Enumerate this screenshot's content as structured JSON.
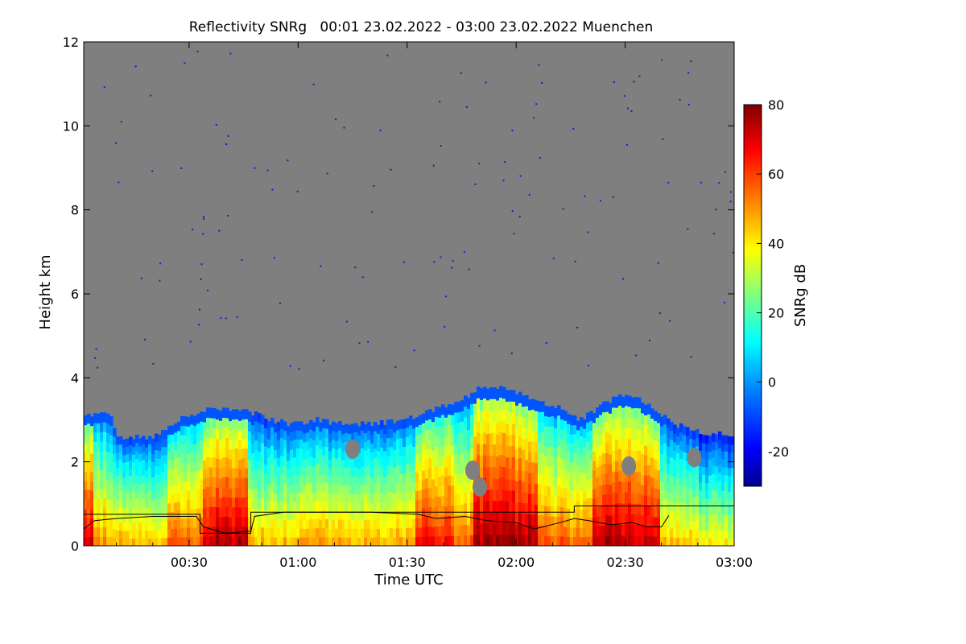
{
  "chart_data": {
    "type": "heatmap",
    "title": "Reflectivity SNRg   00:01 23.02.2022 - 03:00 23.02.2022 Muenchen",
    "xlabel": "Time UTC",
    "ylabel": "Height km",
    "colorbar_label": "SNRg dB",
    "x_range_minutes": [
      1,
      180
    ],
    "ylim": [
      0,
      12
    ],
    "x_ticks": [
      {
        "minute": 30,
        "label": "00:30"
      },
      {
        "minute": 60,
        "label": "01:00"
      },
      {
        "minute": 90,
        "label": "01:30"
      },
      {
        "minute": 120,
        "label": "02:00"
      },
      {
        "minute": 150,
        "label": "02:30"
      },
      {
        "minute": 180,
        "label": "03:00"
      }
    ],
    "y_ticks": [
      0,
      2,
      4,
      6,
      8,
      10,
      12
    ],
    "colorbar_range": [
      -30,
      80
    ],
    "colorbar_ticks": [
      -20,
      0,
      20,
      40,
      60,
      80
    ],
    "colors": {
      "no_signal": "#7f7f7f",
      "colormap": [
        "#00008f",
        "#0000ff",
        "#0080ff",
        "#00ffff",
        "#80ff80",
        "#ffff00",
        "#ff8000",
        "#ff0000",
        "#800000"
      ]
    },
    "echo_top_km": [
      {
        "minute": 1,
        "value": 3.1
      },
      {
        "minute": 8,
        "value": 3.2
      },
      {
        "minute": 10,
        "value": 2.6
      },
      {
        "minute": 20,
        "value": 2.6
      },
      {
        "minute": 25,
        "value": 2.9
      },
      {
        "minute": 30,
        "value": 3.1
      },
      {
        "minute": 36,
        "value": 3.3
      },
      {
        "minute": 45,
        "value": 3.2
      },
      {
        "minute": 47,
        "value": 3.2
      },
      {
        "minute": 52,
        "value": 3.0
      },
      {
        "minute": 58,
        "value": 2.9
      },
      {
        "minute": 65,
        "value": 3.0
      },
      {
        "minute": 72,
        "value": 2.9
      },
      {
        "minute": 80,
        "value": 2.9
      },
      {
        "minute": 90,
        "value": 3.0
      },
      {
        "minute": 96,
        "value": 3.2
      },
      {
        "minute": 104,
        "value": 3.4
      },
      {
        "minute": 110,
        "value": 3.8
      },
      {
        "minute": 116,
        "value": 3.8
      },
      {
        "minute": 124,
        "value": 3.5
      },
      {
        "minute": 132,
        "value": 3.3
      },
      {
        "minute": 138,
        "value": 3.0
      },
      {
        "minute": 144,
        "value": 3.4
      },
      {
        "minute": 150,
        "value": 3.6
      },
      {
        "minute": 156,
        "value": 3.4
      },
      {
        "minute": 164,
        "value": 2.9
      },
      {
        "minute": 172,
        "value": 2.7
      },
      {
        "minute": 180,
        "value": 2.6
      }
    ],
    "intensity_segments": [
      {
        "from": 1,
        "to": 4,
        "level": 45
      },
      {
        "from": 4,
        "to": 9,
        "level": 25
      },
      {
        "from": 9,
        "to": 24,
        "level": 20
      },
      {
        "from": 24,
        "to": 34,
        "level": 30
      },
      {
        "from": 34,
        "to": 46,
        "level": 48
      },
      {
        "from": 46,
        "to": 58,
        "level": 20
      },
      {
        "from": 58,
        "to": 92,
        "level": 22
      },
      {
        "from": 92,
        "to": 103,
        "level": 40
      },
      {
        "from": 103,
        "to": 108,
        "level": 28
      },
      {
        "from": 108,
        "to": 126,
        "level": 50
      },
      {
        "from": 126,
        "to": 141,
        "level": 30
      },
      {
        "from": 141,
        "to": 160,
        "level": 48
      },
      {
        "from": 160,
        "to": 170,
        "level": 18
      },
      {
        "from": 170,
        "to": 180,
        "level": 12
      }
    ],
    "gaps": [
      {
        "minute": 108,
        "height_km": 1.8
      },
      {
        "minute": 110,
        "height_km": 1.4
      },
      {
        "minute": 151,
        "height_km": 1.9
      },
      {
        "minute": 169,
        "height_km": 2.1
      },
      {
        "minute": 75,
        "height_km": 2.3
      }
    ],
    "boundary_layer_line_km": [
      {
        "minute": 1,
        "value": 0.4
      },
      {
        "minute": 4,
        "value": 0.6
      },
      {
        "minute": 10,
        "value": 0.65
      },
      {
        "minute": 20,
        "value": 0.7
      },
      {
        "minute": 32,
        "value": 0.7
      },
      {
        "minute": 34,
        "value": 0.45
      },
      {
        "minute": 40,
        "value": 0.3
      },
      {
        "minute": 47,
        "value": 0.35
      },
      {
        "minute": 48,
        "value": 0.7
      },
      {
        "minute": 52,
        "value": 0.75
      },
      {
        "minute": 56,
        "value": 0.8
      },
      {
        "minute": 60,
        "value": 0.8
      },
      {
        "minute": 80,
        "value": 0.8
      },
      {
        "minute": 93,
        "value": 0.75
      },
      {
        "minute": 98,
        "value": 0.65
      },
      {
        "minute": 106,
        "value": 0.7
      },
      {
        "minute": 112,
        "value": 0.6
      },
      {
        "minute": 120,
        "value": 0.55
      },
      {
        "minute": 125,
        "value": 0.4
      },
      {
        "minute": 132,
        "value": 0.55
      },
      {
        "minute": 136,
        "value": 0.65
      },
      {
        "minute": 140,
        "value": 0.6
      },
      {
        "minute": 146,
        "value": 0.5
      },
      {
        "minute": 152,
        "value": 0.55
      },
      {
        "minute": 156,
        "value": 0.45
      },
      {
        "minute": 160,
        "value": 0.45
      },
      {
        "minute": 162,
        "value": 0.72
      }
    ],
    "step_line_km": [
      {
        "from": 1,
        "to": 33,
        "value": 0.75
      },
      {
        "from": 33,
        "to": 47,
        "value": 0.3
      },
      {
        "from": 47,
        "to": 94,
        "value": 0.8
      },
      {
        "from": 94,
        "to": 136,
        "value": 0.8
      },
      {
        "from": 136,
        "to": 180,
        "value": 0.95
      }
    ]
  }
}
